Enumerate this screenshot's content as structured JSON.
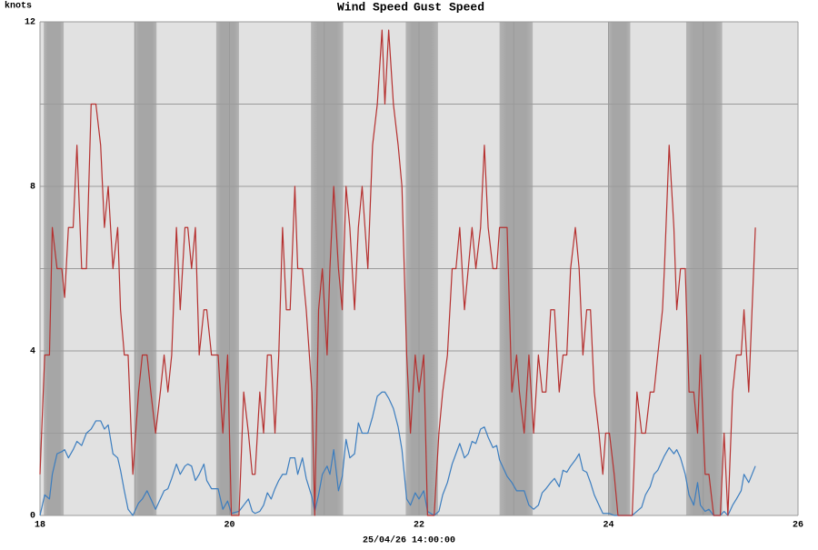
{
  "chart_data": {
    "type": "line",
    "y_label": "knots",
    "x_label": "25/04/26 14:00:00",
    "xlim": [
      18,
      26
    ],
    "xticks": [
      18,
      20,
      22,
      24,
      26
    ],
    "xminor": [
      19,
      21,
      23,
      25
    ],
    "ylim": [
      0,
      12
    ],
    "yticks": [
      0,
      4,
      8,
      12
    ],
    "yminor": [
      2,
      6,
      10
    ],
    "grid": true,
    "shaded_regions": [
      [
        18.04,
        18.25
      ],
      [
        19.0,
        19.23
      ],
      [
        19.86,
        20.1
      ],
      [
        20.86,
        21.2
      ],
      [
        21.86,
        22.2
      ],
      [
        22.85,
        23.2
      ],
      [
        24.0,
        24.23
      ],
      [
        24.82,
        25.2
      ]
    ],
    "x": [
      18.0,
      18.05,
      18.1,
      18.13,
      18.18,
      18.23,
      18.26,
      18.3,
      18.35,
      18.39,
      18.44,
      18.49,
      18.54,
      18.59,
      18.64,
      18.68,
      18.72,
      18.77,
      18.82,
      18.85,
      18.89,
      18.93,
      18.98,
      19.04,
      19.08,
      19.13,
      19.17,
      19.22,
      19.27,
      19.31,
      19.35,
      19.39,
      19.44,
      19.48,
      19.53,
      19.56,
      19.6,
      19.64,
      19.68,
      19.73,
      19.76,
      19.81,
      19.88,
      19.93,
      19.98,
      20.02,
      20.1,
      20.15,
      20.2,
      20.24,
      20.27,
      20.32,
      20.36,
      20.4,
      20.44,
      20.48,
      20.52,
      20.56,
      20.6,
      20.64,
      20.69,
      20.72,
      20.77,
      20.81,
      20.87,
      20.9,
      20.94,
      20.98,
      21.03,
      21.06,
      21.1,
      21.15,
      21.19,
      21.23,
      21.27,
      21.32,
      21.36,
      21.4,
      21.46,
      21.51,
      21.56,
      21.61,
      21.64,
      21.68,
      21.73,
      21.78,
      21.82,
      21.87,
      21.91,
      21.96,
      22.0,
      22.05,
      22.09,
      22.16,
      22.21,
      22.25,
      22.3,
      22.35,
      22.39,
      22.43,
      22.48,
      22.52,
      22.56,
      22.6,
      22.65,
      22.69,
      22.73,
      22.78,
      22.82,
      22.85,
      22.93,
      22.98,
      23.03,
      23.06,
      23.11,
      23.16,
      23.21,
      23.26,
      23.3,
      23.34,
      23.39,
      23.43,
      23.48,
      23.52,
      23.56,
      23.6,
      23.65,
      23.69,
      23.73,
      23.77,
      23.81,
      23.85,
      23.9,
      23.94,
      23.97,
      24.01,
      24.06,
      24.1,
      24.25,
      24.3,
      24.35,
      24.39,
      24.44,
      24.48,
      24.52,
      24.57,
      24.59,
      24.64,
      24.69,
      24.72,
      24.76,
      24.81,
      24.85,
      24.9,
      24.94,
      24.97,
      25.02,
      25.06,
      25.11,
      25.18,
      25.22,
      25.26,
      25.31,
      25.35,
      25.4,
      25.43,
      25.48,
      25.55
    ],
    "series": [
      {
        "name": "Wind Speed",
        "color": "#3b7dbf",
        "values": [
          0,
          0.5,
          0.4,
          1,
          1.5,
          1.55,
          1.6,
          1.4,
          1.6,
          1.8,
          1.7,
          2.0,
          2.1,
          2.3,
          2.3,
          2.1,
          2.2,
          1.5,
          1.4,
          1.1,
          0.6,
          0.15,
          0,
          0.3,
          0.4,
          0.6,
          0.4,
          0.15,
          0.4,
          0.6,
          0.65,
          0.9,
          1.25,
          1.0,
          1.2,
          1.25,
          1.2,
          0.85,
          1.0,
          1.25,
          0.85,
          0.65,
          0.65,
          0.15,
          0.35,
          0.05,
          0.1,
          0.25,
          0.4,
          0.1,
          0.05,
          0.1,
          0.25,
          0.55,
          0.4,
          0.65,
          0.85,
          1.0,
          1.0,
          1.4,
          1.4,
          1.0,
          1.4,
          0.9,
          0.45,
          0.1,
          0.5,
          1.0,
          1.2,
          1.0,
          1.6,
          0.6,
          0.95,
          1.85,
          1.4,
          1.5,
          2.25,
          2.0,
          2.0,
          2.4,
          2.9,
          3.0,
          3.0,
          2.85,
          2.6,
          2.15,
          1.6,
          0.4,
          0.25,
          0.55,
          0.4,
          0.6,
          0.1,
          0,
          0.1,
          0.5,
          0.8,
          1.25,
          1.5,
          1.75,
          1.4,
          1.5,
          1.8,
          1.75,
          2.1,
          2.15,
          1.9,
          1.65,
          1.7,
          1.35,
          0.95,
          0.8,
          0.6,
          0.6,
          0.6,
          0.25,
          0.15,
          0.25,
          0.55,
          0.65,
          0.8,
          0.9,
          0.7,
          1.1,
          1.05,
          1.2,
          1.35,
          1.5,
          1.1,
          1.05,
          0.8,
          0.5,
          0.25,
          0.05,
          0.05,
          0.05,
          0,
          0,
          0,
          0.1,
          0.2,
          0.5,
          0.7,
          1.0,
          1.1,
          1.35,
          1.45,
          1.65,
          1.5,
          1.6,
          1.4,
          1.0,
          0.5,
          0.25,
          0.8,
          0.25,
          0.1,
          0.15,
          0,
          0,
          0.1,
          0,
          0.25,
          0.4,
          0.6,
          1.0,
          0.8,
          1.2
        ]
      },
      {
        "name": "Gust Speed",
        "color": "#b5302f",
        "values": [
          1,
          3.9,
          3.9,
          7,
          6,
          6,
          5.3,
          7,
          7,
          9,
          6,
          6,
          10,
          10,
          9,
          7,
          8,
          6,
          7,
          5,
          3.9,
          3.9,
          1,
          3,
          3.9,
          3.9,
          3,
          2,
          3,
          3.9,
          3,
          3.9,
          7,
          5,
          7,
          7,
          6,
          7,
          3.9,
          5,
          5,
          3.9,
          3.9,
          2,
          3.9,
          0,
          0,
          3,
          2,
          1,
          1,
          3,
          2,
          3.9,
          3.9,
          2,
          3.9,
          7,
          5,
          5,
          8,
          6,
          6,
          5,
          3,
          0,
          5,
          6,
          3.9,
          6,
          8,
          6,
          5,
          8,
          7,
          5,
          7,
          8,
          6,
          9,
          10,
          11.8,
          10,
          11.8,
          10,
          9,
          8,
          3.9,
          2,
          3.9,
          3,
          3.9,
          0,
          0,
          2,
          3,
          3.9,
          6,
          6,
          7,
          5,
          6,
          7,
          6,
          7,
          9,
          7,
          6,
          6,
          7,
          7,
          3,
          3.9,
          3,
          2,
          3.9,
          2,
          3.9,
          3,
          3,
          5,
          5,
          3,
          3.9,
          3.9,
          6,
          7,
          6,
          3.9,
          5,
          5,
          3,
          2,
          1,
          2,
          2,
          1,
          0,
          0,
          3,
          2,
          2,
          3,
          3,
          3.9,
          5,
          6,
          9,
          7,
          5,
          6,
          6,
          3,
          3,
          2,
          3.9,
          1,
          1,
          0,
          0,
          2,
          0,
          3,
          3.9,
          3.9,
          5,
          3,
          7
        ]
      }
    ]
  }
}
